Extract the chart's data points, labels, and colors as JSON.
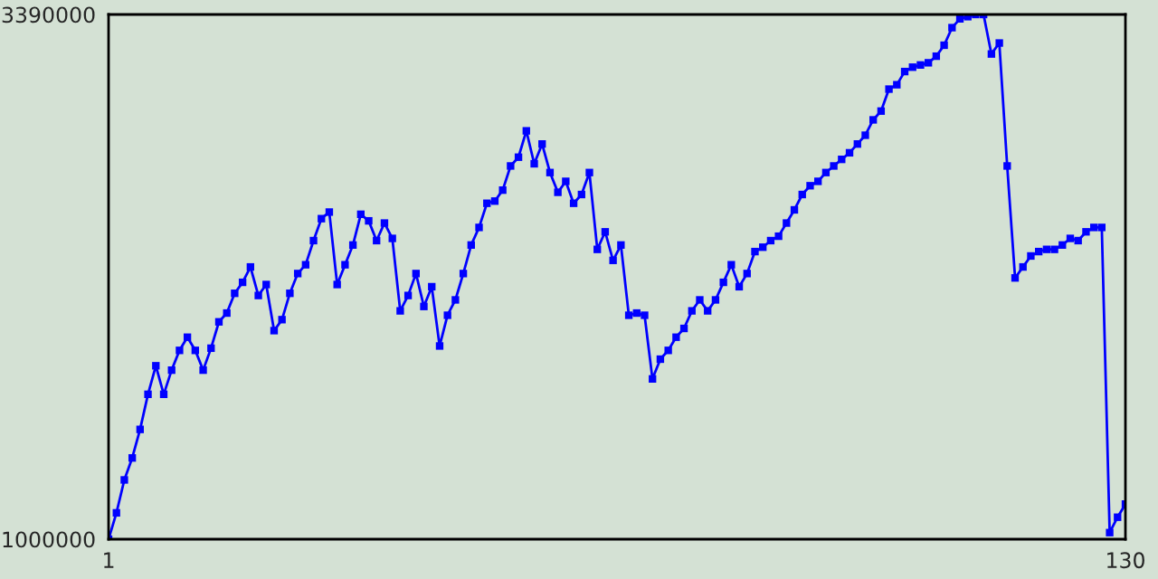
{
  "chart_data": {
    "type": "line",
    "marker": "square",
    "line_style": "solid",
    "x": [
      1,
      2,
      3,
      4,
      5,
      6,
      7,
      8,
      9,
      10,
      11,
      12,
      13,
      14,
      15,
      16,
      17,
      18,
      19,
      20,
      21,
      22,
      23,
      24,
      25,
      26,
      27,
      28,
      29,
      30,
      31,
      32,
      33,
      34,
      35,
      36,
      37,
      38,
      39,
      40,
      41,
      42,
      43,
      44,
      45,
      46,
      47,
      48,
      49,
      50,
      51,
      52,
      53,
      54,
      55,
      56,
      57,
      58,
      59,
      60,
      61,
      62,
      63,
      64,
      65,
      66,
      67,
      68,
      69,
      70,
      71,
      72,
      73,
      74,
      75,
      76,
      77,
      78,
      79,
      80,
      81,
      82,
      83,
      84,
      85,
      86,
      87,
      88,
      89,
      90,
      91,
      92,
      93,
      94,
      95,
      96,
      97,
      98,
      99,
      100,
      101,
      102,
      103,
      104,
      105,
      106,
      107,
      108,
      109,
      110,
      111,
      112,
      113,
      114,
      115,
      116,
      117,
      118,
      119,
      120,
      121,
      122,
      123,
      124,
      125,
      126,
      127,
      128,
      129,
      130
    ],
    "series": [
      {
        "color": "#0000ff",
        "values": [
          1000000,
          1120000,
          1270000,
          1370000,
          1500000,
          1660000,
          1790000,
          1660000,
          1770000,
          1860000,
          1920000,
          1860000,
          1770000,
          1870000,
          1990000,
          2030000,
          2120000,
          2170000,
          2240000,
          2110000,
          2160000,
          1950000,
          2000000,
          2120000,
          2210000,
          2250000,
          2360000,
          2460000,
          2490000,
          2160000,
          2250000,
          2340000,
          2480000,
          2450000,
          2360000,
          2440000,
          2370000,
          2040000,
          2110000,
          2210000,
          2060000,
          2150000,
          1880000,
          2020000,
          2090000,
          2210000,
          2340000,
          2420000,
          2530000,
          2540000,
          2590000,
          2700000,
          2740000,
          2860000,
          2710000,
          2800000,
          2670000,
          2580000,
          2630000,
          2530000,
          2570000,
          2670000,
          2320000,
          2400000,
          2270000,
          2340000,
          2020000,
          2030000,
          2020000,
          1730000,
          1820000,
          1860000,
          1920000,
          1960000,
          2040000,
          2090000,
          2040000,
          2090000,
          2170000,
          2250000,
          2150000,
          2210000,
          2310000,
          2330000,
          2360000,
          2380000,
          2440000,
          2500000,
          2570000,
          2610000,
          2630000,
          2670000,
          2700000,
          2730000,
          2760000,
          2800000,
          2840000,
          2910000,
          2950000,
          3050000,
          3070000,
          3130000,
          3150000,
          3160000,
          3170000,
          3200000,
          3250000,
          3330000,
          3370000,
          3380000,
          3390000,
          3390000,
          3210000,
          3260000,
          2700000,
          2190000,
          2240000,
          2290000,
          2310000,
          2320000,
          2320000,
          2340000,
          2370000,
          2360000,
          2400000,
          2420000,
          2420000,
          1030000,
          1100000,
          1160000
        ]
      }
    ],
    "xlim": [
      1,
      130
    ],
    "xticks": [
      1,
      130
    ],
    "ylim": [
      1000000,
      3390000
    ],
    "yticks": [
      1000000,
      3390000
    ]
  }
}
